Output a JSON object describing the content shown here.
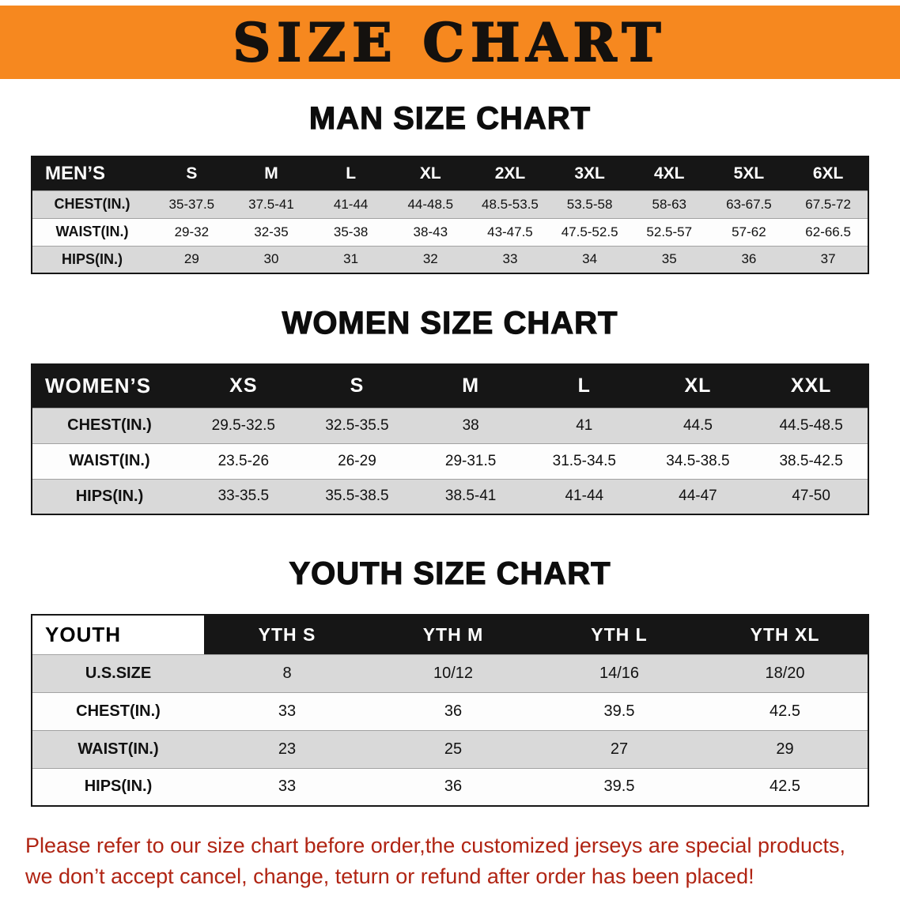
{
  "banner": {
    "title": "SIZE CHART"
  },
  "colors": {
    "banner_orange": "#f6881f",
    "table_header_black": "#161616",
    "row_gray": "#d9d9d9",
    "disclaimer_red": "#b02413"
  },
  "sections": {
    "men": {
      "heading": "MAN SIZE CHART",
      "table": {
        "header": [
          "MEN’S",
          "S",
          "M",
          "L",
          "XL",
          "2XL",
          "3XL",
          "4XL",
          "5XL",
          "6XL"
        ],
        "rows": [
          [
            "CHEST(IN.)",
            "35-37.5",
            "37.5-41",
            "41-44",
            "44-48.5",
            "48.5-53.5",
            "53.5-58",
            "58-63",
            "63-67.5",
            "67.5-72"
          ],
          [
            "WAIST(IN.)",
            "29-32",
            "32-35",
            "35-38",
            "38-43",
            "43-47.5",
            "47.5-52.5",
            "52.5-57",
            "57-62",
            "62-66.5"
          ],
          [
            "HIPS(IN.)",
            "29",
            "30",
            "31",
            "32",
            "33",
            "34",
            "35",
            "36",
            "37"
          ]
        ]
      }
    },
    "women": {
      "heading": "WOMEN SIZE CHART",
      "table": {
        "header": [
          "WOMEN’S",
          "XS",
          "S",
          "M",
          "L",
          "XL",
          "XXL"
        ],
        "rows": [
          [
            "CHEST(IN.)",
            "29.5-32.5",
            "32.5-35.5",
            "38",
            "41",
            "44.5",
            "44.5-48.5"
          ],
          [
            "WAIST(IN.)",
            "23.5-26",
            "26-29",
            "29-31.5",
            "31.5-34.5",
            "34.5-38.5",
            "38.5-42.5"
          ],
          [
            "HIPS(IN.)",
            "33-35.5",
            "35.5-38.5",
            "38.5-41",
            "41-44",
            "44-47",
            "47-50"
          ]
        ]
      }
    },
    "youth": {
      "heading": "YOUTH SIZE CHART",
      "table": {
        "header": [
          "YOUTH",
          "YTH S",
          "YTH M",
          "YTH L",
          "YTH XL"
        ],
        "rows": [
          [
            "U.S.SIZE",
            "8",
            "10/12",
            "14/16",
            "18/20"
          ],
          [
            "CHEST(IN.)",
            "33",
            "36",
            "39.5",
            "42.5"
          ],
          [
            "WAIST(IN.)",
            "23",
            "25",
            "27",
            "29"
          ],
          [
            "HIPS(IN.)",
            "33",
            "36",
            "39.5",
            "42.5"
          ]
        ]
      }
    }
  },
  "disclaimer": {
    "line1": "Please refer to our size chart before order,the customized jerseys are special products,",
    "line2": "we don’t accept cancel, change, teturn or refund after order has been placed!"
  }
}
